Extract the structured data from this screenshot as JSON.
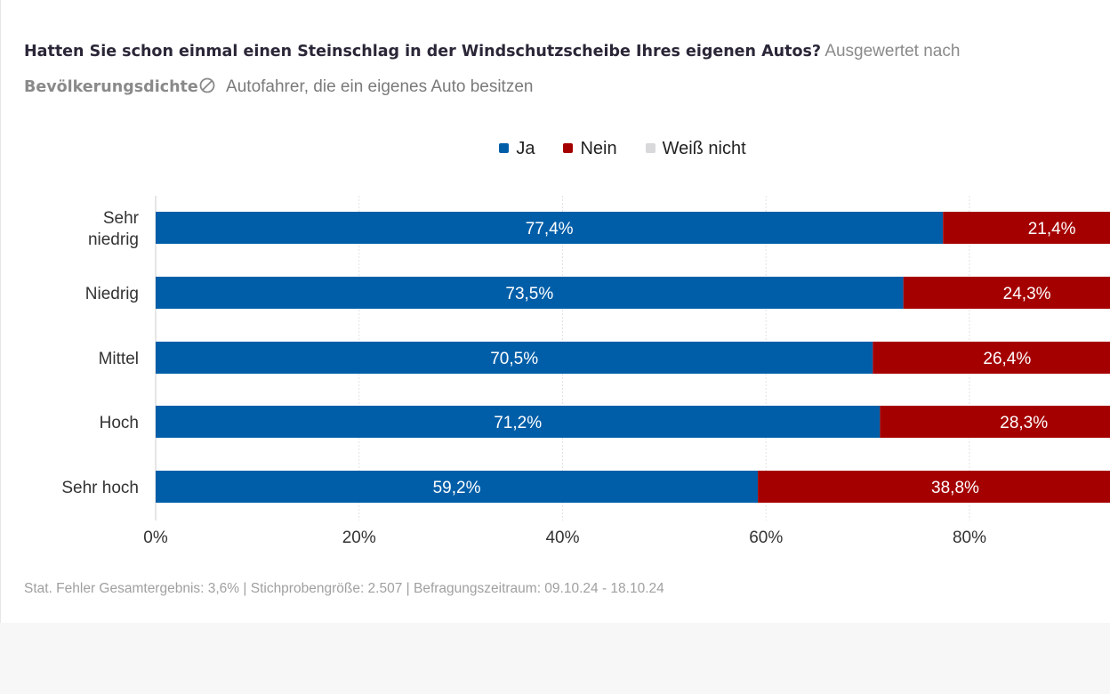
{
  "title": {
    "question": "Hatten Sie schon einmal einen Steinschlag in der Windschutzscheibe Ihres eigenen Autos?",
    "evaluated_by": "Ausgewertet nach",
    "dimension": "Bevölkerungsdichte",
    "filter_icon": "circle-slash-icon",
    "audience": "Autofahrer, die ein eigenes Auto besitzen"
  },
  "chart_data": {
    "type": "bar",
    "orientation": "horizontal",
    "stacked": true,
    "categories": [
      "Sehr niedrig",
      "Niedrig",
      "Mittel",
      "Hoch",
      "Sehr hoch"
    ],
    "series": [
      {
        "name": "Ja",
        "color": "#005ea8",
        "values": [
          77.4,
          73.5,
          70.5,
          71.2,
          59.2
        ],
        "labels": [
          "77,4%",
          "73,5%",
          "70,5%",
          "71,2%",
          "59,2%"
        ]
      },
      {
        "name": "Nein",
        "color": "#a50000",
        "values": [
          21.4,
          24.3,
          26.4,
          28.3,
          38.8
        ],
        "labels": [
          "21,4%",
          "24,3%",
          "26,4%",
          "28,3%",
          "38,8%"
        ]
      },
      {
        "name": "Weiß nicht",
        "color": "#d9d9dc"
      }
    ],
    "xticks": [
      "0%",
      "20%",
      "40%",
      "60%",
      "80%"
    ],
    "xtick_values": [
      0,
      20,
      40,
      60,
      80
    ],
    "xlim": [
      0,
      100
    ],
    "grid": true,
    "legend": "top-center"
  },
  "footer": "Stat. Fehler Gesamtergebnis: 3,6% | Stichprobengröße: 2.507 | Befragungszeitraum: 09.10.24 - 18.10.24"
}
